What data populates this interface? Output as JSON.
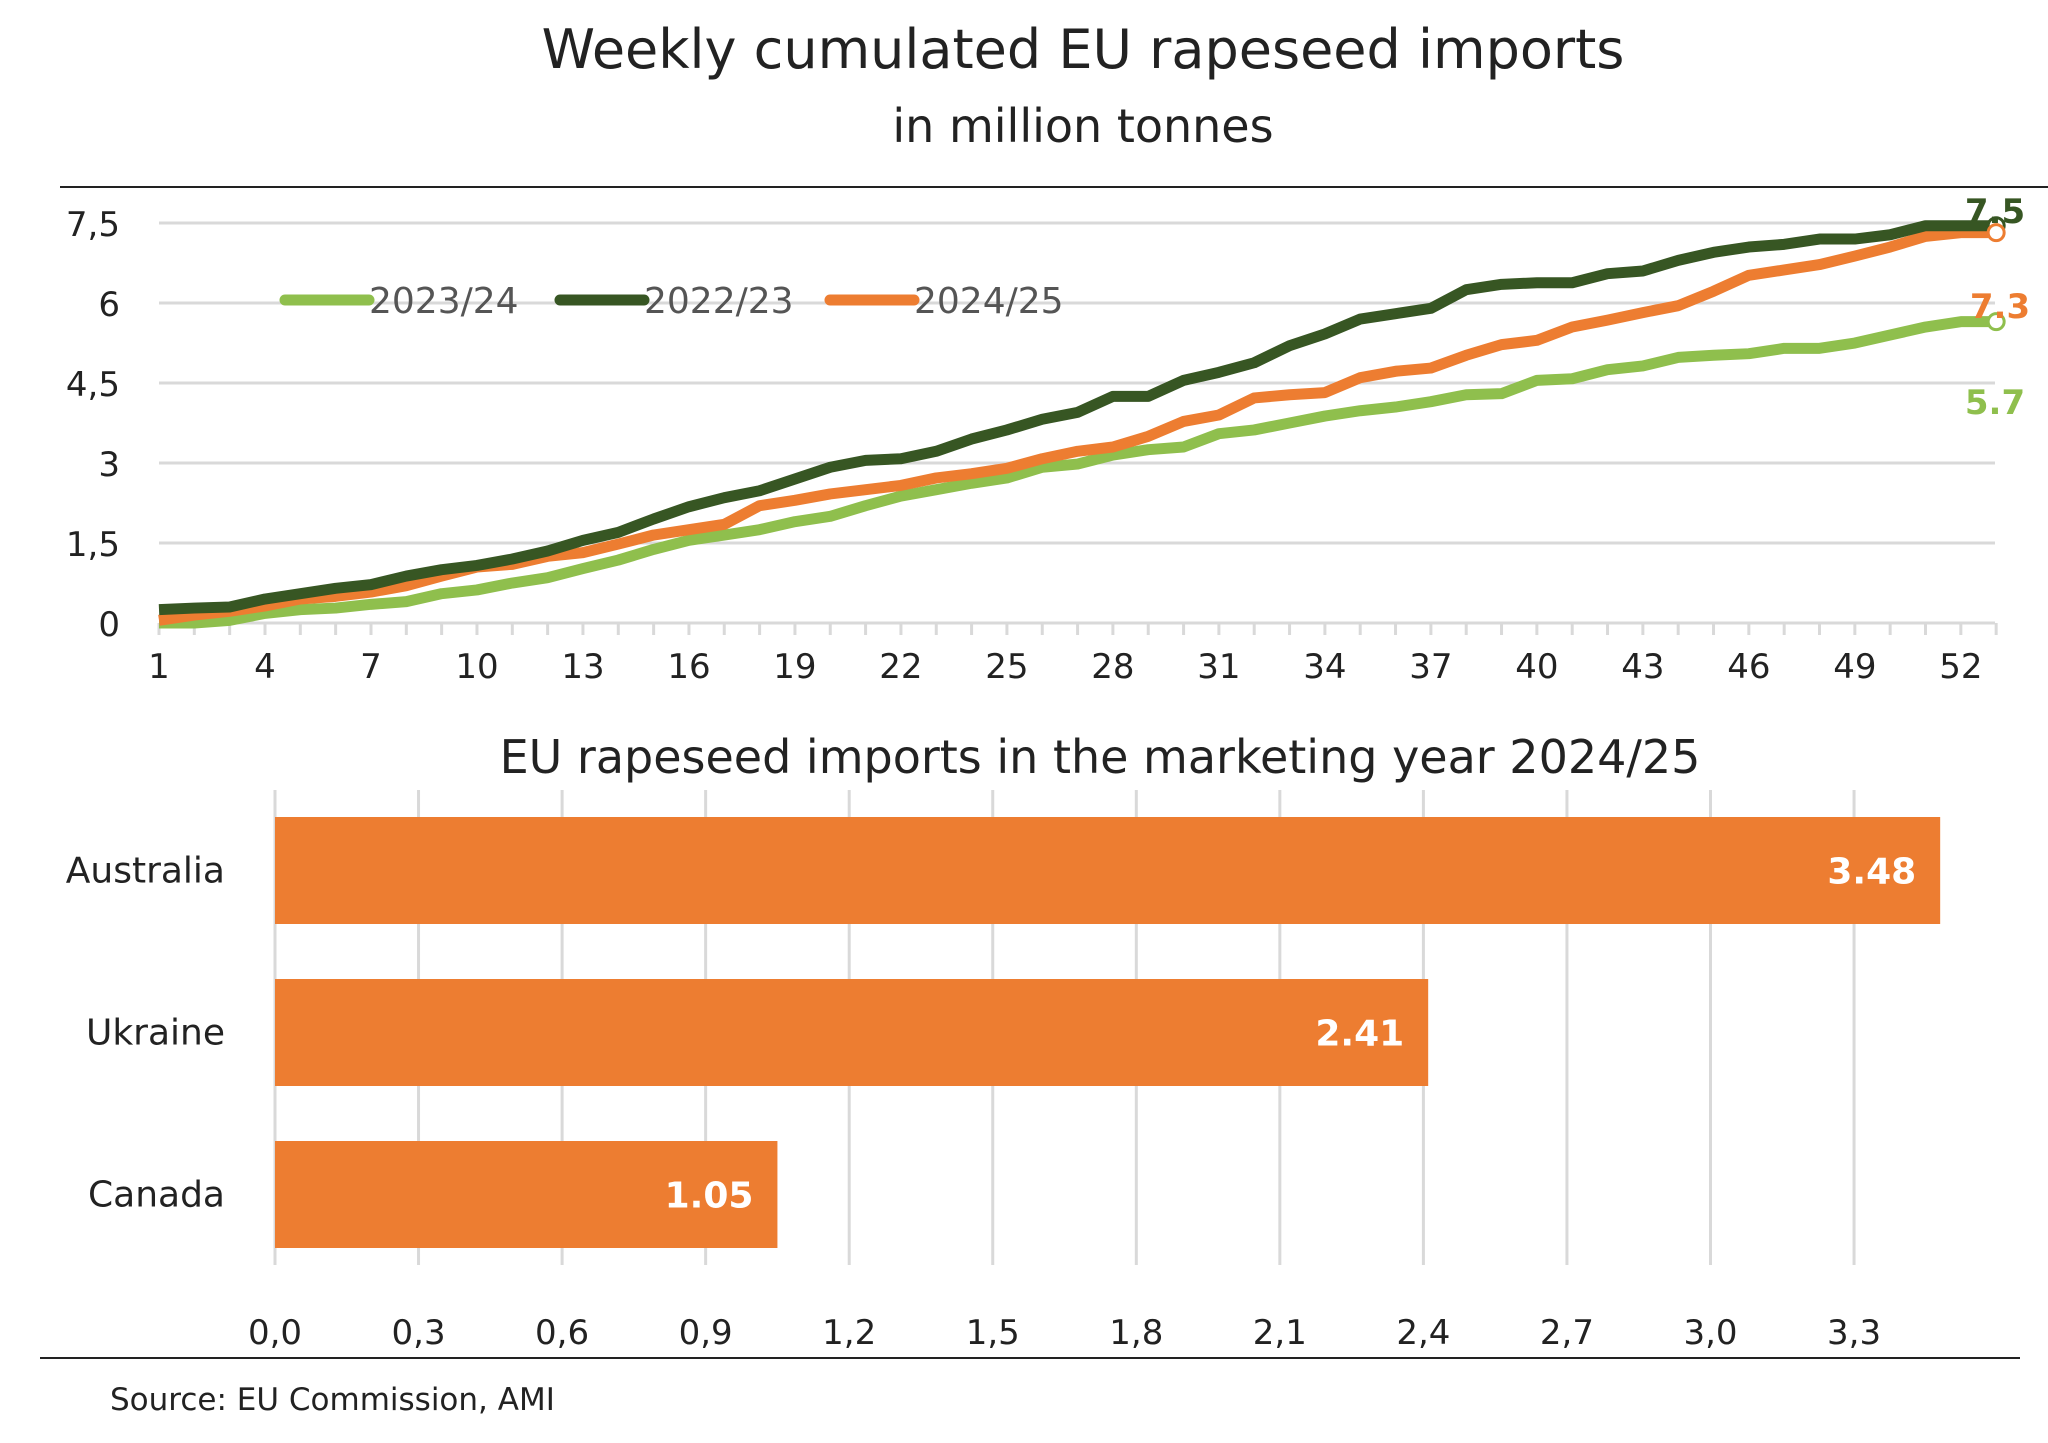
{
  "chart_data": [
    {
      "type": "line",
      "title": "Weekly cumulated EU rapeseed imports",
      "subtitle": "in million tonnes",
      "xlabel": "",
      "ylabel": "",
      "x": [
        1,
        2,
        3,
        4,
        5,
        6,
        7,
        8,
        9,
        10,
        11,
        12,
        13,
        14,
        15,
        16,
        17,
        18,
        19,
        20,
        21,
        22,
        23,
        24,
        25,
        26,
        27,
        28,
        29,
        30,
        31,
        32,
        33,
        34,
        35,
        36,
        37,
        38,
        39,
        40,
        41,
        42,
        43,
        44,
        45,
        46,
        47,
        48,
        49,
        50,
        51,
        52,
        53
      ],
      "x_tick_labels": [
        "1",
        "4",
        "7",
        "10",
        "13",
        "16",
        "19",
        "22",
        "25",
        "28",
        "31",
        "34",
        "37",
        "40",
        "43",
        "46",
        "49",
        "52"
      ],
      "y_tick_labels": [
        "0",
        "1,5",
        "3",
        "4,5",
        "6",
        "7,5"
      ],
      "y_ticks": [
        0,
        1.5,
        3,
        4.5,
        6,
        7.5
      ],
      "ylim": [
        0,
        7.5
      ],
      "grid": true,
      "legend_position": "top-left",
      "series": [
        {
          "name": "2023/24",
          "color": "#8fbf4d",
          "end_label": "5.7",
          "values": [
            0,
            0,
            0.05,
            0.18,
            0.25,
            0.28,
            0.35,
            0.4,
            0.55,
            0.62,
            0.75,
            0.85,
            1.02,
            1.18,
            1.38,
            1.55,
            1.65,
            1.75,
            1.9,
            2.0,
            2.2,
            2.38,
            2.5,
            2.62,
            2.72,
            2.92,
            2.98,
            3.15,
            3.25,
            3.3,
            3.55,
            3.62,
            3.75,
            3.88,
            3.98,
            4.05,
            4.15,
            4.28,
            4.3,
            4.55,
            4.58,
            4.75,
            4.82,
            4.98,
            5.02,
            5.05,
            5.15,
            5.15,
            5.25,
            5.4,
            5.55,
            5.65,
            5.65
          ]
        },
        {
          "name": "2022/23",
          "color": "#375623",
          "end_label": "7.5",
          "values": [
            0.25,
            0.28,
            0.3,
            0.45,
            0.55,
            0.65,
            0.72,
            0.88,
            1.0,
            1.08,
            1.2,
            1.35,
            1.55,
            1.7,
            1.95,
            2.18,
            2.35,
            2.48,
            2.7,
            2.92,
            3.05,
            3.08,
            3.22,
            3.45,
            3.62,
            3.82,
            3.95,
            4.25,
            4.25,
            4.55,
            4.7,
            4.88,
            5.2,
            5.42,
            5.7,
            5.8,
            5.9,
            6.25,
            6.35,
            6.38,
            6.38,
            6.55,
            6.6,
            6.8,
            6.95,
            7.05,
            7.1,
            7.2,
            7.2,
            7.28,
            7.45,
            7.45,
            7.45
          ]
        },
        {
          "name": "2024/25",
          "color": "#ed7d31",
          "end_label": "7.3",
          "values": [
            0.05,
            0.15,
            0.22,
            0.32,
            0.45,
            0.5,
            0.58,
            0.7,
            0.88,
            1.05,
            1.1,
            1.25,
            1.32,
            1.48,
            1.65,
            1.75,
            1.85,
            2.2,
            2.3,
            2.42,
            2.5,
            2.58,
            2.72,
            2.8,
            2.9,
            3.08,
            3.22,
            3.3,
            3.5,
            3.78,
            3.9,
            4.22,
            4.28,
            4.32,
            4.6,
            4.72,
            4.78,
            5.02,
            5.22,
            5.3,
            5.55,
            5.68,
            5.82,
            5.95,
            6.22,
            6.52,
            6.62,
            6.72,
            6.88,
            7.05,
            7.25,
            7.32,
            7.32
          ]
        }
      ]
    },
    {
      "type": "bar",
      "orientation": "horizontal",
      "title": "EU rapeseed imports in the marketing year 2024/25",
      "categories": [
        "Australia",
        "Ukraine",
        "Canada"
      ],
      "values": [
        3.48,
        2.41,
        1.05
      ],
      "value_labels": [
        "3.48",
        "2.41",
        "1.05"
      ],
      "color": "#ed7d31",
      "x_ticks": [
        0,
        0.3,
        0.6,
        0.9,
        1.2,
        1.5,
        1.8,
        2.1,
        2.4,
        2.7,
        3.0,
        3.3
      ],
      "x_tick_labels": [
        "0,0",
        "0,3",
        "0,6",
        "0,9",
        "1,2",
        "1,5",
        "1,8",
        "2,1",
        "2,4",
        "2,7",
        "3,0",
        "3,3"
      ],
      "xlim": [
        0,
        3.5
      ],
      "grid": true
    }
  ],
  "source": "Source: EU Commission, AMI"
}
